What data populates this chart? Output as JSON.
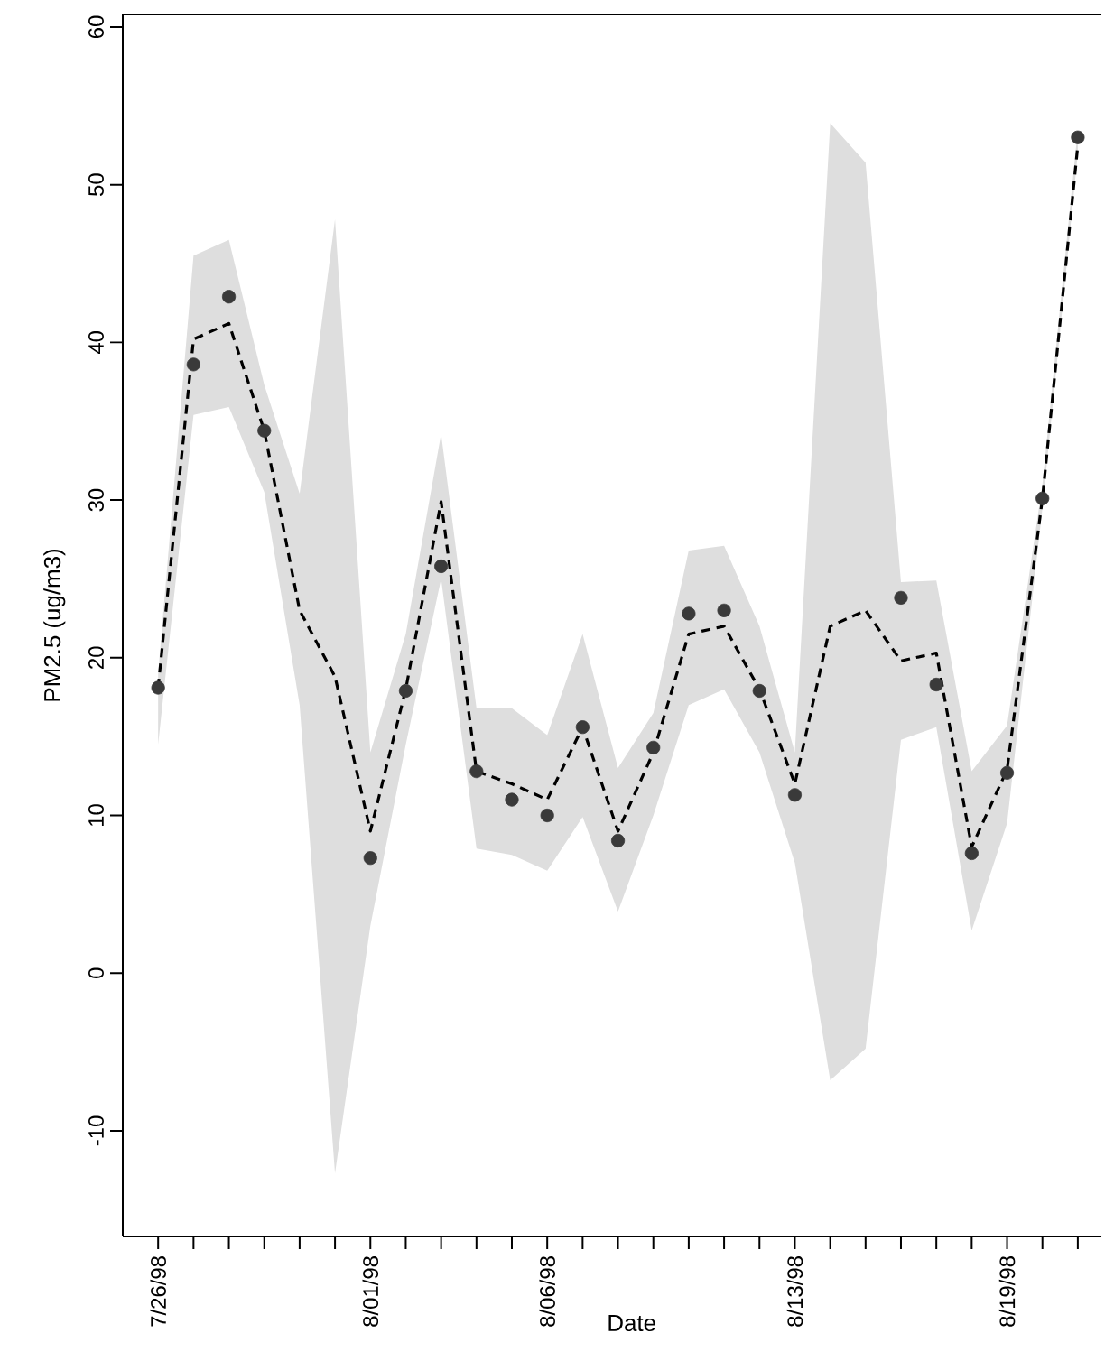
{
  "chart_data": {
    "type": "line",
    "xlabel": "Date",
    "ylabel": "PM2.5 (ug/m3)",
    "x": [
      "1998-07-26",
      "1998-07-27",
      "1998-07-28",
      "1998-07-29",
      "1998-07-30",
      "1998-07-31",
      "1998-08-01",
      "1998-08-02",
      "1998-08-03",
      "1998-08-04",
      "1998-08-05",
      "1998-08-06",
      "1998-08-07",
      "1998-08-08",
      "1998-08-09",
      "1998-08-10",
      "1998-08-11",
      "1998-08-12",
      "1998-08-13",
      "1998-08-14",
      "1998-08-15",
      "1998-08-16",
      "1998-08-17",
      "1998-08-18",
      "1998-08-19",
      "1998-08-20",
      "1998-08-21"
    ],
    "series": [
      {
        "color": "#000000",
        "line_style": "dashed",
        "marker": "none",
        "values": [
          18.1,
          40.2,
          41.2,
          34.4,
          23.0,
          18.8,
          9.0,
          18.0,
          29.9,
          12.8,
          12.0,
          11.0,
          15.6,
          9.0,
          14.0,
          21.5,
          22.0,
          18.0,
          12.0,
          22.0,
          23.0,
          19.8,
          20.3,
          8.0,
          12.9,
          30.1,
          52.5
        ],
        "lower": [
          14.5,
          35.4,
          35.9,
          30.5,
          17,
          -12.7,
          3,
          14.5,
          25,
          7.9,
          7.5,
          6.5,
          9.9,
          3.9,
          10,
          17,
          18,
          14,
          7,
          -6.8,
          -4.8,
          14.8,
          15.6,
          2.7,
          9.5,
          29.5,
          52
        ],
        "upper": [
          19,
          45.5,
          46.5,
          37.3,
          30.4,
          47.8,
          14,
          21.5,
          34.2,
          16.8,
          16.8,
          15.1,
          21.5,
          13,
          16.5,
          26.8,
          27.1,
          22,
          14,
          53.9,
          51.4,
          24.8,
          24.9,
          12.8,
          15.7,
          31,
          53.5
        ]
      },
      {
        "type": "scatter",
        "color": "#3a3a3a",
        "marker": "circle",
        "x": [
          "1998-07-26",
          "1998-07-27",
          "1998-07-28",
          "1998-07-29",
          "1998-08-01",
          "1998-08-02",
          "1998-08-03",
          "1998-08-04",
          "1998-08-05",
          "1998-08-06",
          "1998-08-07",
          "1998-08-08",
          "1998-08-09",
          "1998-08-10",
          "1998-08-11",
          "1998-08-12",
          "1998-08-13",
          "1998-08-16",
          "1998-08-17",
          "1998-08-18",
          "1998-08-19",
          "1998-08-20",
          "1998-08-21"
        ],
        "values": [
          18.1,
          38.6,
          42.9,
          34.4,
          7.3,
          17.9,
          25.8,
          12.8,
          11.0,
          10.0,
          15.6,
          8.4,
          14.3,
          22.8,
          23.0,
          17.9,
          11.3,
          23.8,
          18.3,
          7.6,
          12.7,
          30.1,
          53.0
        ]
      }
    ],
    "xlim": [
      "1998-07-25",
      "1998-08-21T16:00"
    ],
    "xticks": [
      {
        "value": "1998-07-26",
        "label": "7/26/98"
      },
      {
        "value": "1998-07-27",
        "label": null
      },
      {
        "value": "1998-07-28",
        "label": null
      },
      {
        "value": "1998-07-29",
        "label": null
      },
      {
        "value": "1998-07-30",
        "label": null
      },
      {
        "value": "1998-07-31",
        "label": null
      },
      {
        "value": "1998-08-01",
        "label": "8/01/98"
      },
      {
        "value": "1998-08-02",
        "label": null
      },
      {
        "value": "1998-08-03",
        "label": null
      },
      {
        "value": "1998-08-04",
        "label": null
      },
      {
        "value": "1998-08-05",
        "label": null
      },
      {
        "value": "1998-08-06",
        "label": "8/06/98"
      },
      {
        "value": "1998-08-07",
        "label": null
      },
      {
        "value": "1998-08-08",
        "label": null
      },
      {
        "value": "1998-08-09",
        "label": null
      },
      {
        "value": "1998-08-10",
        "label": null
      },
      {
        "value": "1998-08-11",
        "label": null
      },
      {
        "value": "1998-08-12",
        "label": null
      },
      {
        "value": "1998-08-13",
        "label": "8/13/98"
      },
      {
        "value": "1998-08-14",
        "label": null
      },
      {
        "value": "1998-08-15",
        "label": null
      },
      {
        "value": "1998-08-16",
        "label": null
      },
      {
        "value": "1998-08-17",
        "label": null
      },
      {
        "value": "1998-08-18",
        "label": null
      },
      {
        "value": "1998-08-19",
        "label": "8/19/98"
      },
      {
        "value": "1998-08-20",
        "label": null
      },
      {
        "value": "1998-08-21",
        "label": null
      }
    ],
    "ylim": [
      -16.7,
      60.8
    ],
    "yticks": [
      -10,
      0,
      10,
      20,
      30,
      40,
      50,
      60
    ]
  }
}
